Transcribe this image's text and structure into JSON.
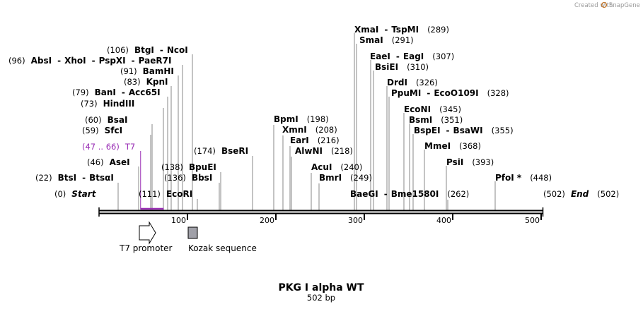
{
  "credit": {
    "prefix": "Created with",
    "brand": "SnapGene"
  },
  "map": {
    "title": "PKG I alpha WT",
    "length_label": "502 bp",
    "length": 502
  },
  "axis": {
    "ticks": [
      {
        "pos": 100,
        "label": "100"
      },
      {
        "pos": 200,
        "label": "200"
      },
      {
        "pos": 300,
        "label": "300"
      },
      {
        "pos": 400,
        "label": "400"
      },
      {
        "pos": 500,
        "label": "500"
      }
    ]
  },
  "primer": {
    "name": "T7",
    "range": "(47 .. 66)",
    "start": 47,
    "end": 66,
    "color": "#9a2fb5"
  },
  "features": [
    {
      "name": "T7 promoter",
      "type": "arrow",
      "color": "#ffffff"
    },
    {
      "name": "Kozak sequence",
      "type": "box",
      "color": "#a0a0a8"
    }
  ],
  "sites": [
    {
      "pos": 0,
      "pos_text": "(0)",
      "names": [
        "Start"
      ],
      "italic": true
    },
    {
      "pos": 22,
      "pos_text": "(22)",
      "names": [
        "BtsI",
        "BtsαI"
      ]
    },
    {
      "pos": 46,
      "pos_text": "(46)",
      "names": [
        "AseI"
      ]
    },
    {
      "pos": 59,
      "pos_text": "(59)",
      "names": [
        "SfcI"
      ]
    },
    {
      "pos": 60,
      "pos_text": "(60)",
      "names": [
        "BsaI"
      ]
    },
    {
      "pos": 73,
      "pos_text": "(73)",
      "names": [
        "HindIII"
      ]
    },
    {
      "pos": 79,
      "pos_text": "(79)",
      "names": [
        "BanI",
        "Acc65I"
      ]
    },
    {
      "pos": 83,
      "pos_text": "(83)",
      "names": [
        "KpnI"
      ]
    },
    {
      "pos": 91,
      "pos_text": "(91)",
      "names": [
        "BamHI"
      ]
    },
    {
      "pos": 96,
      "pos_text": "(96)",
      "names": [
        "AbsI",
        "XhoI",
        "PspXI",
        "PaeR7I"
      ]
    },
    {
      "pos": 106,
      "pos_text": "(106)",
      "names": [
        "BtgI",
        "NcoI"
      ]
    },
    {
      "pos": 111,
      "pos_text": "(111)",
      "names": [
        "EcoRI"
      ]
    },
    {
      "pos": 136,
      "pos_text": "(136)",
      "names": [
        "BbsI"
      ]
    },
    {
      "pos": 138,
      "pos_text": "(138)",
      "names": [
        "BpuEI"
      ]
    },
    {
      "pos": 174,
      "pos_text": "(174)",
      "names": [
        "BseRI"
      ]
    },
    {
      "pos": 198,
      "pos_text": "(198)",
      "names": [
        "BpmI"
      ]
    },
    {
      "pos": 208,
      "pos_text": "(208)",
      "names": [
        "XmnI"
      ]
    },
    {
      "pos": 216,
      "pos_text": "(216)",
      "names": [
        "EarI"
      ]
    },
    {
      "pos": 218,
      "pos_text": "(218)",
      "names": [
        "AlwNI"
      ]
    },
    {
      "pos": 240,
      "pos_text": "(240)",
      "names": [
        "AcuI"
      ]
    },
    {
      "pos": 249,
      "pos_text": "(249)",
      "names": [
        "BmrI"
      ]
    },
    {
      "pos": 262,
      "pos_text": "(262)",
      "names": [
        "BaeGI",
        "Bme1580I"
      ]
    },
    {
      "pos": 289,
      "pos_text": "(289)",
      "names": [
        "XmaI",
        "TspMI"
      ]
    },
    {
      "pos": 291,
      "pos_text": "(291)",
      "names": [
        "SmaI"
      ]
    },
    {
      "pos": 307,
      "pos_text": "(307)",
      "names": [
        "EaeI",
        "EagI"
      ]
    },
    {
      "pos": 310,
      "pos_text": "(310)",
      "names": [
        "BsiEI"
      ]
    },
    {
      "pos": 326,
      "pos_text": "(326)",
      "names": [
        "DrdI"
      ]
    },
    {
      "pos": 328,
      "pos_text": "(328)",
      "names": [
        "PpuMI",
        "EcoO109I"
      ]
    },
    {
      "pos": 345,
      "pos_text": "(345)",
      "names": [
        "EcoNI"
      ]
    },
    {
      "pos": 351,
      "pos_text": "(351)",
      "names": [
        "BsmI"
      ]
    },
    {
      "pos": 355,
      "pos_text": "(355)",
      "names": [
        "BspEI",
        "BsaWI"
      ]
    },
    {
      "pos": 368,
      "pos_text": "(368)",
      "names": [
        "MmeI"
      ]
    },
    {
      "pos": 393,
      "pos_text": "(393)",
      "names": [
        "PsiI"
      ]
    },
    {
      "pos": 448,
      "pos_text": "(448)",
      "names": [
        "PfoI *"
      ]
    },
    {
      "pos": 502,
      "pos_text": "(502)",
      "names": [
        "End"
      ],
      "italic": true
    }
  ]
}
